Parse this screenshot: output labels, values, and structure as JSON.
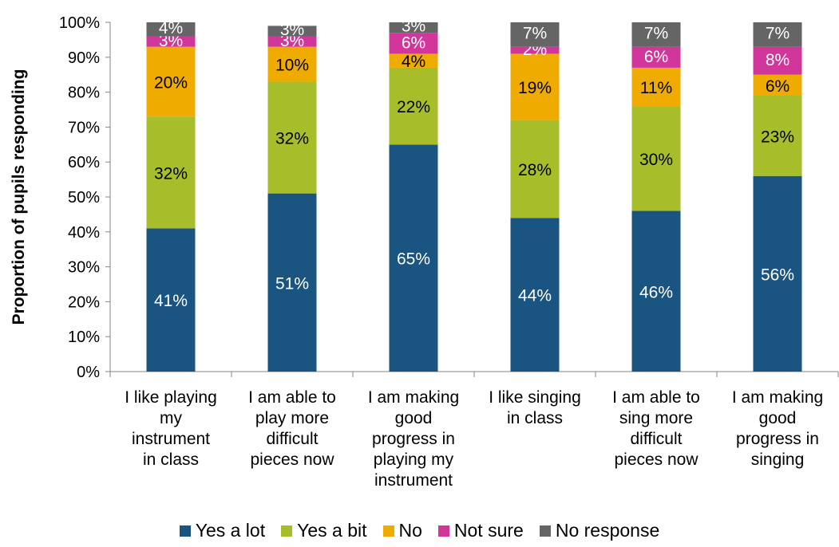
{
  "chart_data": {
    "type": "bar",
    "stacked": true,
    "ylabel": "Proportion of pupils responding",
    "xlabel": "",
    "ylim": [
      0,
      100
    ],
    "yticks": [
      "0%",
      "10%",
      "20%",
      "30%",
      "40%",
      "50%",
      "60%",
      "70%",
      "80%",
      "90%",
      "100%"
    ],
    "grid": false,
    "legend_position": "bottom",
    "categories": [
      [
        "I like playing",
        "my",
        "instrument",
        "in class"
      ],
      [
        "I am able to",
        "play more",
        "difficult",
        "pieces now"
      ],
      [
        "I am making",
        "good",
        "progress in",
        "playing my",
        "instrument"
      ],
      [
        "I like singing",
        "in class"
      ],
      [
        "I am able to",
        "sing more",
        "difficult",
        "pieces now"
      ],
      [
        "I am making",
        "good",
        "progress in",
        "singing"
      ]
    ],
    "series": [
      {
        "name": "Yes a lot",
        "color": "#1a5480",
        "label_color": "#ffffff",
        "values": [
          41,
          51,
          65,
          44,
          46,
          56
        ],
        "labels": [
          "41%",
          "51%",
          "65%",
          "44%",
          "46%",
          "56%"
        ]
      },
      {
        "name": "Yes a bit",
        "color": "#a7bd2a",
        "label_color": "#000000",
        "values": [
          32,
          32,
          22,
          28,
          30,
          23
        ],
        "labels": [
          "32%",
          "32%",
          "22%",
          "28%",
          "30%",
          "23%"
        ]
      },
      {
        "name": "No",
        "color": "#f0ab00",
        "label_color": "#000000",
        "values": [
          20,
          10,
          4,
          19,
          11,
          6
        ],
        "labels": [
          "20%",
          "10%",
          "4%",
          "19%",
          "11%",
          "6%"
        ]
      },
      {
        "name": "Not sure",
        "color": "#d1369a",
        "label_color": "#ffffff",
        "values": [
          3,
          3,
          6,
          2,
          6,
          8
        ],
        "labels": [
          "3%",
          "3%",
          "6%",
          "2%",
          "6%",
          "8%"
        ]
      },
      {
        "name": "No response",
        "color": "#656565",
        "label_color": "#ffffff",
        "values": [
          4,
          3,
          3,
          7,
          7,
          7
        ],
        "labels": [
          "4%",
          "3%",
          "3%",
          "7%",
          "7%",
          "7%"
        ]
      }
    ]
  }
}
